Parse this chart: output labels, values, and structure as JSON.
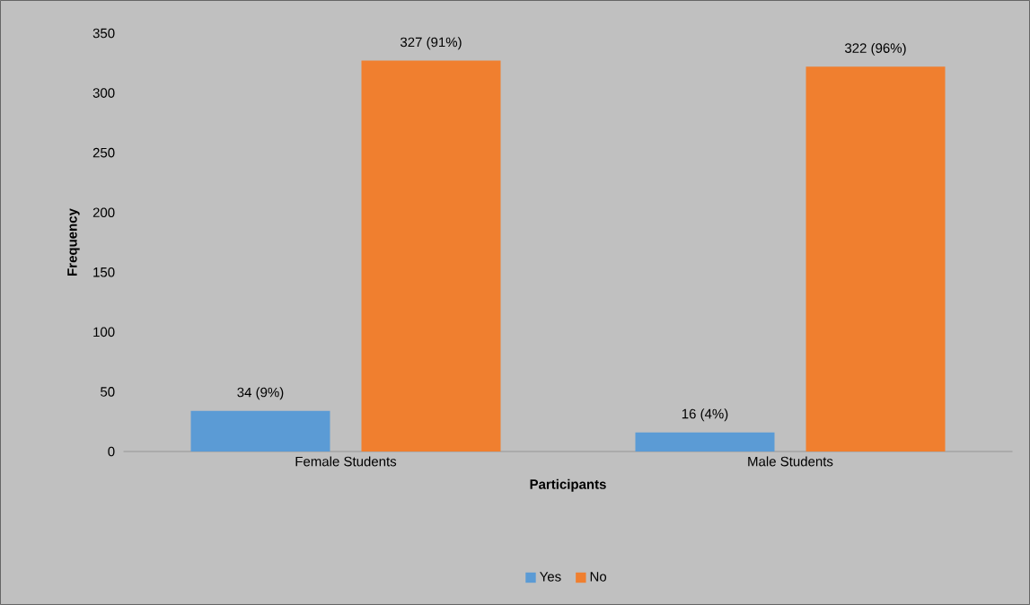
{
  "chart_data": {
    "type": "bar",
    "xlabel": "Participants",
    "ylabel": "Frequency",
    "categories": [
      "Female Students",
      "Male Students"
    ],
    "series": [
      {
        "name": "Yes",
        "color": "#5b9bd5",
        "values": [
          34,
          16
        ],
        "value_labels": [
          "34 (9%)",
          "16 (4%)"
        ]
      },
      {
        "name": "No",
        "color": "#f07f2f",
        "values": [
          327,
          322
        ],
        "value_labels": [
          "327 (91%)",
          "322 (96%)"
        ]
      }
    ],
    "ylim": [
      0,
      350
    ],
    "yticks": [
      0,
      50,
      100,
      150,
      200,
      250,
      300,
      350
    ],
    "legend": "bottom"
  }
}
